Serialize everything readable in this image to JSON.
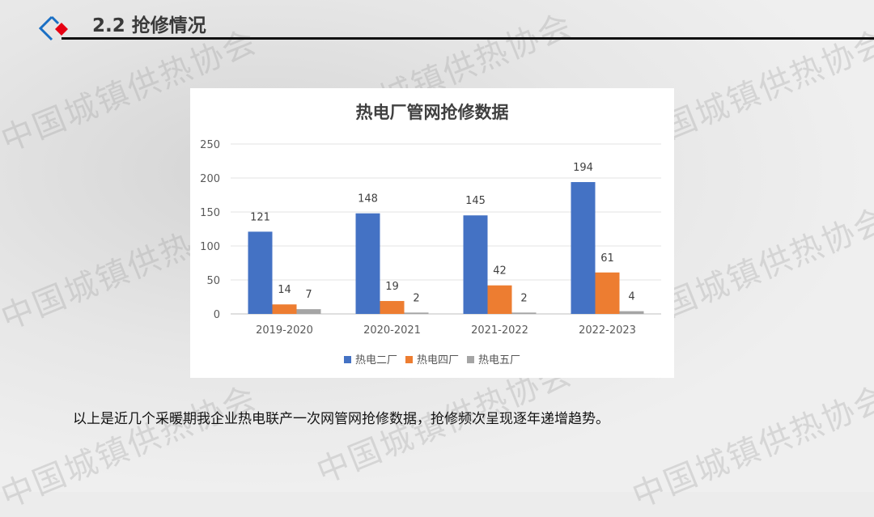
{
  "header": {
    "title": "2.2 抢修情况"
  },
  "watermark": "中国城镇供热协会",
  "chart_data": {
    "type": "bar",
    "title": "热电厂管网抢修数据",
    "categories": [
      "2019-2020",
      "2020-2021",
      "2021-2022",
      "2022-2023"
    ],
    "series": [
      {
        "name": "热电二厂",
        "values": [
          121,
          148,
          145,
          194
        ],
        "color": "#4472C4"
      },
      {
        "name": "热电四厂",
        "values": [
          14,
          19,
          42,
          61
        ],
        "color": "#ED7D31"
      },
      {
        "name": "热电五厂",
        "values": [
          7,
          2,
          2,
          4
        ],
        "color": "#A5A5A5"
      }
    ],
    "ylim": [
      0,
      250
    ],
    "yticks": [
      0,
      50,
      100,
      150,
      200,
      250
    ],
    "grid": true,
    "legend": "bottom",
    "data_labels": true
  },
  "caption": "以上是近几个采暖期我企业热电联产一次网管网抢修数据，抢修频次呈现逐年递增趋势。"
}
